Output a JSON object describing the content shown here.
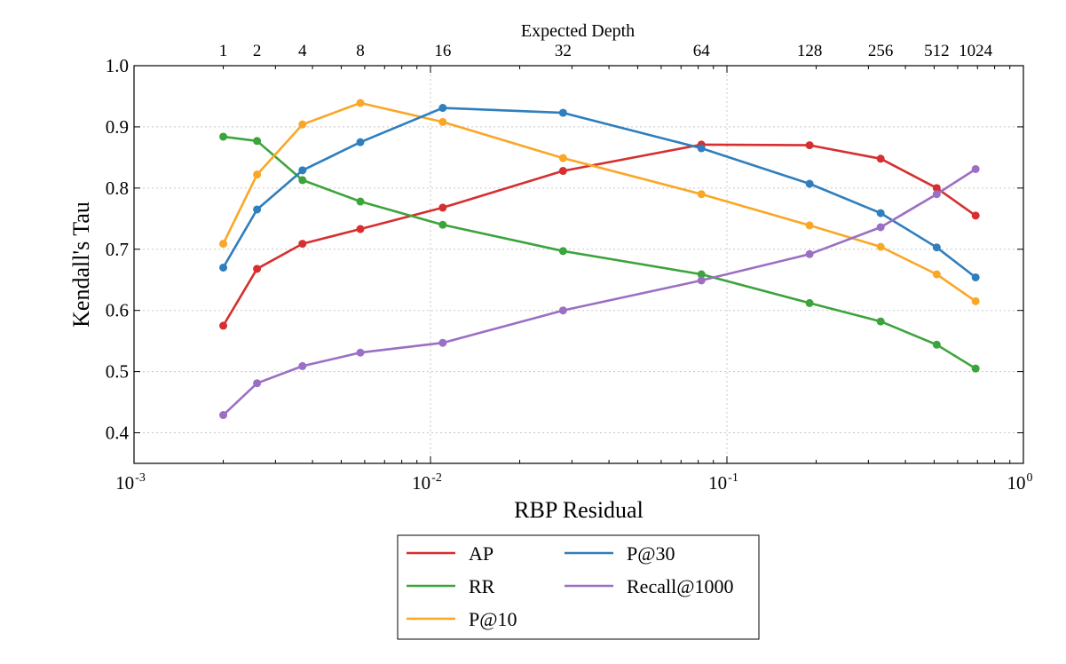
{
  "chart_data": {
    "type": "line",
    "xlabel": "RBP Residual",
    "ylabel": "Kendall's Tau",
    "top_xlabel": "Expected Depth",
    "x_scale": "log",
    "xlim": [
      0.001,
      1
    ],
    "ylim": [
      0.35,
      1.0
    ],
    "x_ticks": [
      {
        "value": 0.001,
        "base": "10",
        "exp": "-3"
      },
      {
        "value": 0.01,
        "base": "10",
        "exp": "-2"
      },
      {
        "value": 0.1,
        "base": "10",
        "exp": "-1"
      },
      {
        "value": 1,
        "base": "10",
        "exp": "0"
      }
    ],
    "y_ticks": [
      "0.4",
      "0.5",
      "0.6",
      "0.7",
      "0.8",
      "0.9",
      "1.0"
    ],
    "top_ticks": [
      "1",
      "2",
      "4",
      "8",
      "16",
      "32",
      "64",
      "128",
      "256",
      "512",
      "1024"
    ],
    "x": [
      0.002,
      0.0026,
      0.0037,
      0.0058,
      0.011,
      0.028,
      0.082,
      0.19,
      0.33,
      0.51,
      0.69
    ],
    "grid": true,
    "legend_position": "below",
    "series": [
      {
        "name": "AP",
        "color": "#d62f2f",
        "values": [
          0.575,
          0.668,
          0.709,
          0.733,
          0.768,
          0.828,
          0.871,
          0.87,
          0.848,
          0.8,
          0.755
        ]
      },
      {
        "name": "RR",
        "color": "#3ca43c",
        "values": [
          0.884,
          0.877,
          0.813,
          0.778,
          0.74,
          0.697,
          0.659,
          0.612,
          0.582,
          0.544,
          0.505
        ]
      },
      {
        "name": "P@10",
        "color": "#f9a727",
        "values": [
          0.709,
          0.822,
          0.904,
          0.939,
          0.908,
          0.849,
          0.79,
          0.739,
          0.704,
          0.659,
          0.615
        ]
      },
      {
        "name": "P@30",
        "color": "#2f7ebd",
        "values": [
          0.67,
          0.765,
          0.829,
          0.875,
          0.931,
          0.923,
          0.865,
          0.807,
          0.759,
          0.703,
          0.654
        ]
      },
      {
        "name": "Recall@1000",
        "color": "#9b6fc4",
        "values": [
          0.429,
          0.481,
          0.509,
          0.531,
          0.547,
          0.6,
          0.649,
          0.692,
          0.736,
          0.79,
          0.831
        ]
      }
    ]
  }
}
